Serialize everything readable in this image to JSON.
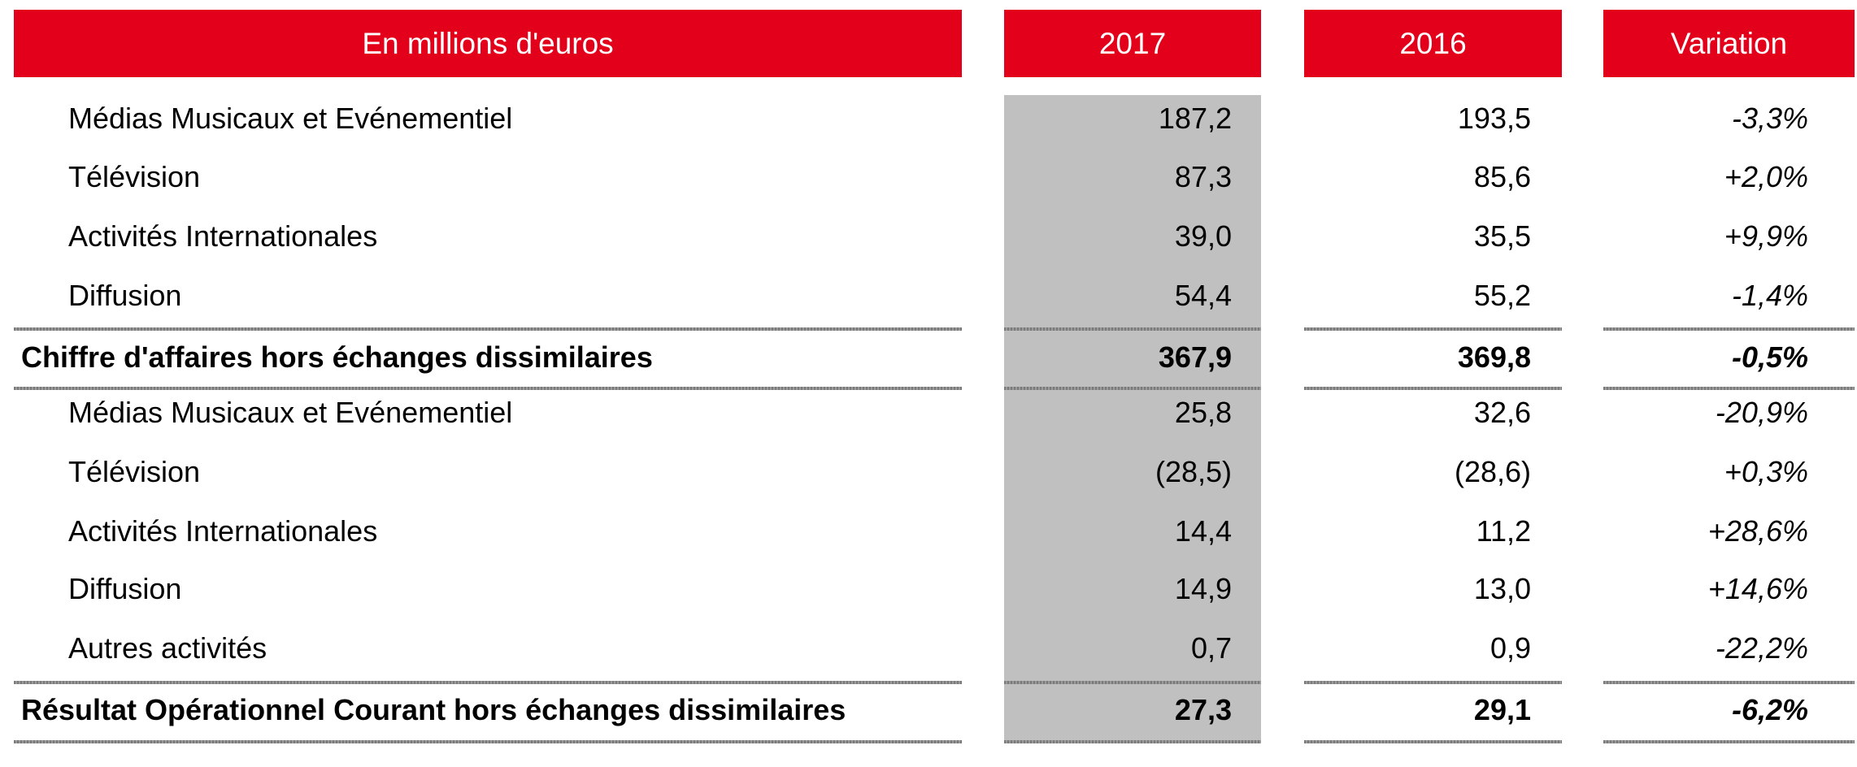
{
  "header": {
    "label": "En millions d'euros",
    "col_2017": "2017",
    "col_2016": "2016",
    "col_variation": "Variation"
  },
  "rows": [
    {
      "label": "Médias Musicaux et Evénementiel",
      "y2017": "187,2",
      "y2016": "193,5",
      "variation": "-3,3%"
    },
    {
      "label": "Télévision",
      "y2017": "87,3",
      "y2016": "85,6",
      "variation": "+2,0%"
    },
    {
      "label": "Activités Internationales",
      "y2017": "39,0",
      "y2016": "35,5",
      "variation": "+9,9%"
    },
    {
      "label": "Diffusion",
      "y2017": "54,4",
      "y2016": "55,2",
      "variation": "-1,4%"
    },
    {
      "label": "Chiffre d'affaires hors échanges dissimilaires",
      "y2017": "367,9",
      "y2016": "369,8",
      "variation": "-0,5%"
    },
    {
      "label": "Médias Musicaux et Evénementiel",
      "y2017": "25,8",
      "y2016": "32,6",
      "variation": "-20,9%"
    },
    {
      "label": "Télévision",
      "y2017": "(28,5)",
      "y2016": "(28,6)",
      "variation": "+0,3%"
    },
    {
      "label": "Activités Internationales",
      "y2017": "14,4",
      "y2016": "11,2",
      "variation": "+28,6%"
    },
    {
      "label": "Diffusion",
      "y2017": "14,9",
      "y2016": "13,0",
      "variation": "+14,6%"
    },
    {
      "label": "Autres activités",
      "y2017": "0,7",
      "y2016": "0,9",
      "variation": "-22,2%"
    },
    {
      "label": "Résultat Opérationnel Courant hors échanges dissimilaires",
      "y2017": "27,3",
      "y2016": "29,1",
      "variation": "-6,2%"
    }
  ]
}
